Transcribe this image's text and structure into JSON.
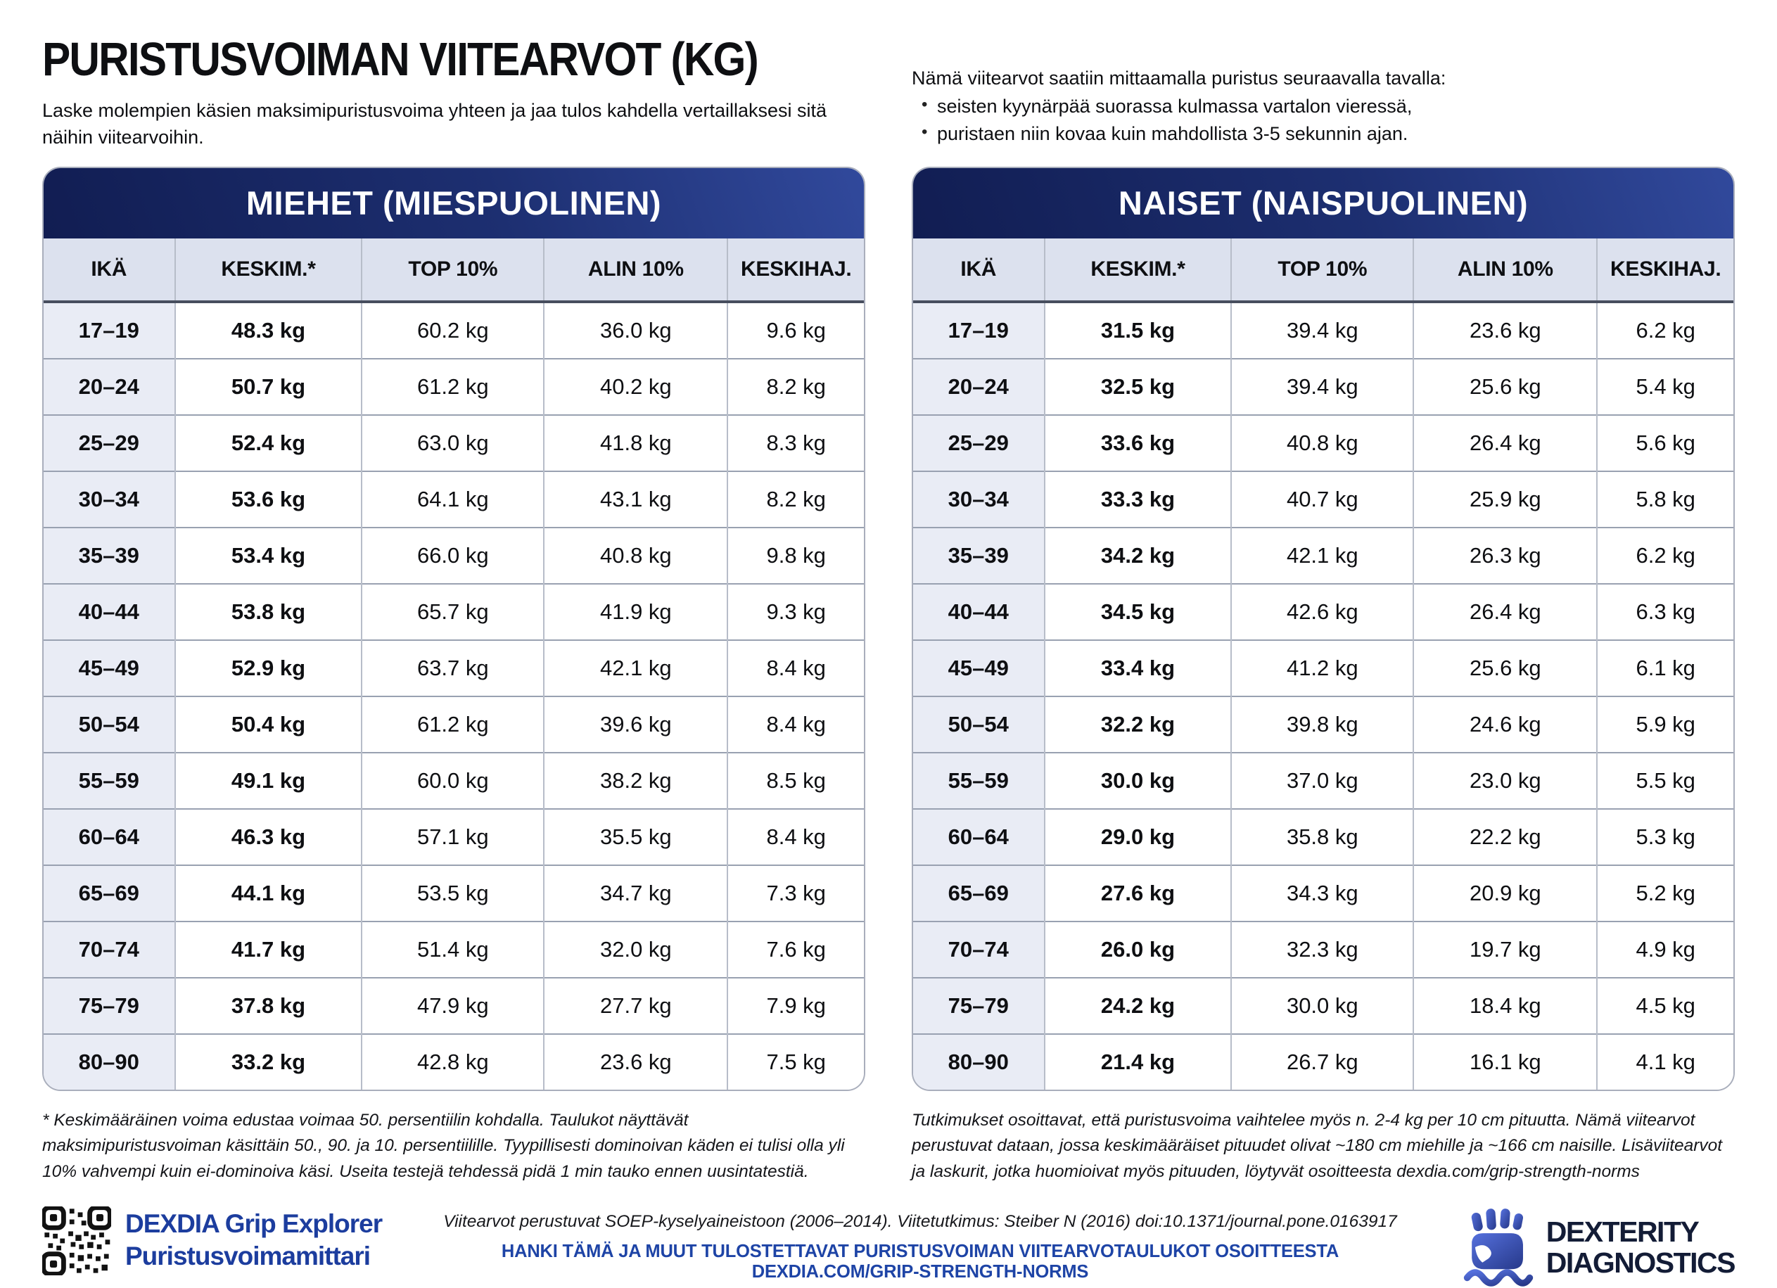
{
  "page": {
    "title": "PURISTUSVOIMAN VIITEARVOT (KG)",
    "subtitle": "Laske molempien käsien maksimipuristusvoima yhteen ja jaa tulos kahdella vertaillaksesi sitä näihin viitearvoihin."
  },
  "method": {
    "intro": "Nämä viitearvot saatiin mittaamalla puristus seuraavalla tavalla:",
    "bullets": [
      "seisten kyynärpää suorassa kulmassa vartalon vieressä,",
      "puristaen niin kovaa kuin mahdollista 3-5 sekunnin ajan."
    ]
  },
  "tables": [
    {
      "id": "men",
      "title": "MIEHET (MIESPUOLINEN)",
      "columns": [
        "IKÄ",
        "KESKIM.*",
        "TOP 10%",
        "ALIN 10%",
        "KESKIHAJ."
      ],
      "rows": [
        [
          "17–19",
          "48.3 kg",
          "60.2 kg",
          "36.0 kg",
          "9.6 kg"
        ],
        [
          "20–24",
          "50.7 kg",
          "61.2 kg",
          "40.2 kg",
          "8.2 kg"
        ],
        [
          "25–29",
          "52.4 kg",
          "63.0 kg",
          "41.8 kg",
          "8.3 kg"
        ],
        [
          "30–34",
          "53.6 kg",
          "64.1 kg",
          "43.1 kg",
          "8.2 kg"
        ],
        [
          "35–39",
          "53.4 kg",
          "66.0 kg",
          "40.8 kg",
          "9.8 kg"
        ],
        [
          "40–44",
          "53.8 kg",
          "65.7 kg",
          "41.9 kg",
          "9.3 kg"
        ],
        [
          "45–49",
          "52.9 kg",
          "63.7 kg",
          "42.1 kg",
          "8.4 kg"
        ],
        [
          "50–54",
          "50.4 kg",
          "61.2 kg",
          "39.6 kg",
          "8.4 kg"
        ],
        [
          "55–59",
          "49.1 kg",
          "60.0 kg",
          "38.2 kg",
          "8.5 kg"
        ],
        [
          "60–64",
          "46.3 kg",
          "57.1 kg",
          "35.5 kg",
          "8.4 kg"
        ],
        [
          "65–69",
          "44.1 kg",
          "53.5 kg",
          "34.7 kg",
          "7.3 kg"
        ],
        [
          "70–74",
          "41.7 kg",
          "51.4 kg",
          "32.0 kg",
          "7.6 kg"
        ],
        [
          "75–79",
          "37.8 kg",
          "47.9 kg",
          "27.7 kg",
          "7.9 kg"
        ],
        [
          "80–90",
          "33.2 kg",
          "42.8 kg",
          "23.6 kg",
          "7.5 kg"
        ]
      ],
      "footnote": "* Keskimääräinen voima edustaa voimaa 50. persentiilin kohdalla. Taulukot näyttävät maksimipuristusvoiman käsittäin 50., 90. ja 10. persentiilille. Tyypillisesti dominoivan käden ei tulisi olla yli 10% vahvempi kuin ei-dominoiva käsi. Useita testejä tehdessä pidä 1 min tauko ennen uusintatestiä."
    },
    {
      "id": "women",
      "title": "NAISET (NAISPUOLINEN)",
      "columns": [
        "IKÄ",
        "KESKIM.*",
        "TOP 10%",
        "ALIN 10%",
        "KESKIHAJ."
      ],
      "rows": [
        [
          "17–19",
          "31.5 kg",
          "39.4 kg",
          "23.6 kg",
          "6.2 kg"
        ],
        [
          "20–24",
          "32.5 kg",
          "39.4 kg",
          "25.6 kg",
          "5.4 kg"
        ],
        [
          "25–29",
          "33.6 kg",
          "40.8 kg",
          "26.4 kg",
          "5.6 kg"
        ],
        [
          "30–34",
          "33.3 kg",
          "40.7 kg",
          "25.9 kg",
          "5.8 kg"
        ],
        [
          "35–39",
          "34.2 kg",
          "42.1 kg",
          "26.3 kg",
          "6.2 kg"
        ],
        [
          "40–44",
          "34.5 kg",
          "42.6 kg",
          "26.4 kg",
          "6.3 kg"
        ],
        [
          "45–49",
          "33.4 kg",
          "41.2 kg",
          "25.6 kg",
          "6.1 kg"
        ],
        [
          "50–54",
          "32.2 kg",
          "39.8 kg",
          "24.6 kg",
          "5.9 kg"
        ],
        [
          "55–59",
          "30.0 kg",
          "37.0 kg",
          "23.0 kg",
          "5.5 kg"
        ],
        [
          "60–64",
          "29.0 kg",
          "35.8 kg",
          "22.2 kg",
          "5.3 kg"
        ],
        [
          "65–69",
          "27.6 kg",
          "34.3 kg",
          "20.9 kg",
          "5.2 kg"
        ],
        [
          "70–74",
          "26.0 kg",
          "32.3 kg",
          "19.7 kg",
          "4.9 kg"
        ],
        [
          "75–79",
          "24.2 kg",
          "30.0 kg",
          "18.4 kg",
          "4.5 kg"
        ],
        [
          "80–90",
          "21.4 kg",
          "26.7 kg",
          "16.1 kg",
          "4.1 kg"
        ]
      ],
      "footnote": "Tutkimukset osoittavat, että puristusvoima vaihtelee myös n. 2-4 kg per 10 cm pituutta. Nämä viitearvot perustuvat dataan, jossa keskimääräiset pituudet olivat ~180 cm miehille ja ~166 cm naisille. Lisäviitearvot ja laskurit, jotka huomioivat myös pituuden, löytyvät osoitteesta dexdia.com/grip-strength-norms"
    }
  ],
  "footer": {
    "brand_line1": "DEXDIA Grip Explorer",
    "brand_line2": "Puristusvoimamittari",
    "source_line": "Viitearvot perustuvat SOEP-kyselyaineistoon (2006–2014). Viitetutkimus: Steiber N (2016) doi:10.1371/journal.pone.0163917",
    "cta_line": "HANKI TÄMÄ JA MUUT TULOSTETTAVAT PURISTUSVOIMAN VIITEARVOTAULUKOT OSOITTEESTA DEXDIA.COM/GRIP-STRENGTH-NORMS",
    "logo_line1": "DEXTERITY",
    "logo_line2": "DIAGNOSTICS"
  },
  "icons": {
    "footer_left": "qr-code-icon",
    "footer_right": "grip-fist-icon"
  },
  "colors": {
    "band_dark": "#111d52",
    "band_light": "#31499c",
    "column_header_bg": "#dce1ee",
    "age_column_bg": "#e9ecf5",
    "brand_blue": "#1c3d9e",
    "cta_blue": "#1e44a6",
    "logo_navy": "#131c36"
  }
}
